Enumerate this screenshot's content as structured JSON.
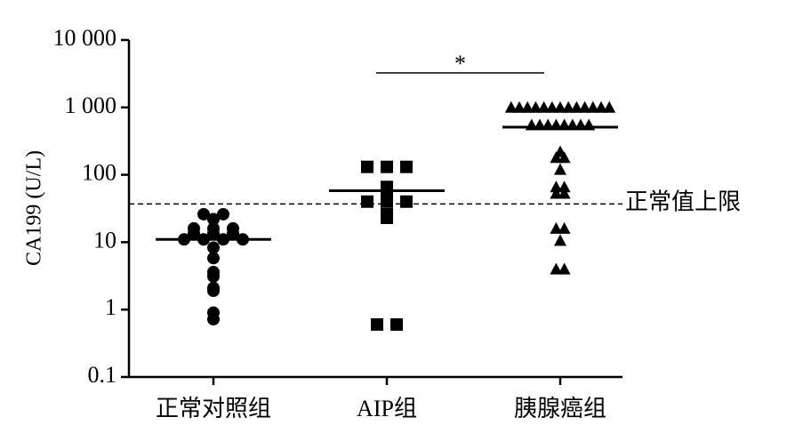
{
  "chart_data": {
    "type": "scatter",
    "y_label": "CA199 (U/L)",
    "yscale": "log",
    "ylim": [
      0.1,
      10000
    ],
    "yticks": [
      0.1,
      1,
      10,
      100,
      {
        "value": 1000,
        "label": "1 000"
      },
      {
        "value": 10000,
        "label": "10 000"
      }
    ],
    "categories": [
      "正常对照组",
      "AIP组",
      "胰腺癌组"
    ],
    "series": [
      {
        "marker": "circle",
        "color": "#000000",
        "mean": 11,
        "values": [
          22,
          26,
          26,
          16,
          16,
          16,
          13.5,
          13.5,
          13.5,
          11,
          11,
          11,
          11,
          8.3,
          5.8,
          3.6,
          3.1,
          2.1,
          1.9,
          0.9,
          0.72
        ]
      },
      {
        "marker": "square",
        "color": "#000000",
        "mean": 58,
        "values": [
          131,
          131,
          131,
          66,
          56,
          40,
          40,
          40,
          26,
          23,
          0.6,
          0.6
        ]
      },
      {
        "marker": "triangle",
        "color": "#000000",
        "mean": 510,
        "values": [
          1000,
          1000,
          1000,
          1000,
          1000,
          1000,
          1000,
          1000,
          1000,
          1000,
          1000,
          1000,
          1000,
          550,
          550,
          550,
          550,
          550,
          550,
          550,
          550,
          220,
          180,
          180,
          120,
          66,
          66,
          53,
          53,
          16,
          16,
          10.6,
          4,
          4
        ]
      }
    ],
    "reference_line": {
      "value": 37,
      "label": "正常值上限"
    },
    "significance": {
      "label": "*",
      "between": [
        1,
        2
      ]
    }
  }
}
